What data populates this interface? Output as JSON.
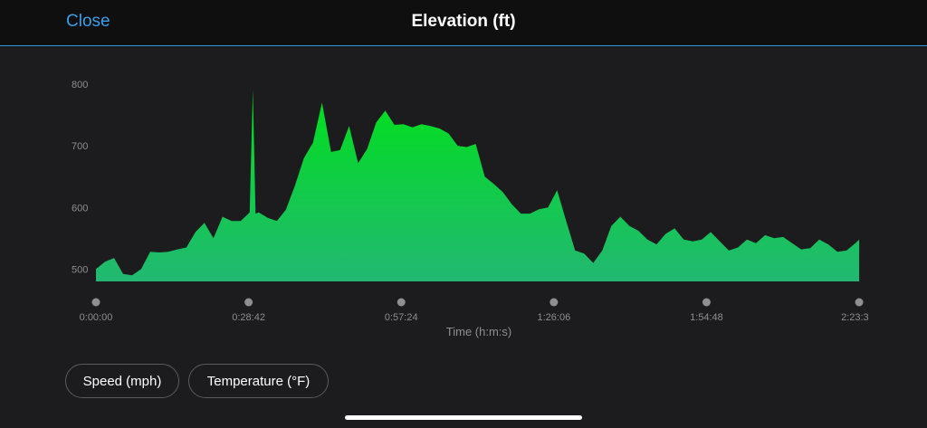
{
  "header": {
    "close_label": "Close",
    "title": "Elevation (ft)"
  },
  "buttons": {
    "speed_label": "Speed (mph)",
    "temperature_label": "Temperature (°F)"
  },
  "colors": {
    "accent": "#3a9fe6",
    "fill_top": "#00e01a",
    "fill_bottom": "#22b873",
    "background": "#1c1c1e"
  },
  "chart_data": {
    "type": "area",
    "title": "Elevation (ft)",
    "xlabel": "Time (h:m:s)",
    "ylabel": "",
    "x_unit": "seconds",
    "xlim": [
      0,
      8640
    ],
    "ylim": [
      480,
      800
    ],
    "yticks": [
      500,
      600,
      700,
      800
    ],
    "xticks": [
      {
        "value": 0,
        "label": "0:00:00"
      },
      {
        "value": 1722,
        "label": "0:28:42"
      },
      {
        "value": 3444,
        "label": "0:57:24"
      },
      {
        "value": 5166,
        "label": "1:26:06"
      },
      {
        "value": 6888,
        "label": "1:54:48"
      },
      {
        "value": 8610,
        "label": "2:23:3"
      }
    ],
    "grid": false,
    "series": [
      {
        "x": [
          0,
          102,
          204,
          306,
          408,
          510,
          612,
          714,
          816,
          918,
          1020,
          1122,
          1224,
          1326,
          1428,
          1530,
          1632,
          1734,
          1770,
          1800,
          1836,
          1938,
          2040,
          2142,
          2244,
          2346,
          2448,
          2550,
          2652,
          2754,
          2856,
          2958,
          3060,
          3162,
          3264,
          3366,
          3468,
          3570,
          3672,
          3774,
          3876,
          3978,
          4080,
          4182,
          4284,
          4386,
          4488,
          4590,
          4692,
          4794,
          4896,
          4998,
          5100,
          5202,
          5304,
          5406,
          5508,
          5610,
          5712,
          5814,
          5916,
          6018,
          6120,
          6222,
          6324,
          6426,
          6528,
          6630,
          6732,
          6834,
          6936,
          7038,
          7140,
          7242,
          7344,
          7446,
          7548,
          7650,
          7752,
          7854,
          7956,
          8058,
          8160,
          8262,
          8364,
          8466,
          8568,
          8610
        ],
        "y": [
          500,
          512,
          518,
          492,
          490,
          500,
          528,
          527,
          528,
          532,
          535,
          560,
          575,
          550,
          585,
          578,
          578,
          592,
          792,
          590,
          592,
          583,
          578,
          596,
          635,
          680,
          705,
          770,
          690,
          693,
          732,
          672,
          695,
          738,
          757,
          734,
          735,
          730,
          735,
          732,
          728,
          720,
          700,
          698,
          703,
          650,
          638,
          625,
          605,
          590,
          590,
          597,
          600,
          628,
          578,
          530,
          525,
          510,
          530,
          570,
          585,
          570,
          562,
          548,
          540,
          557,
          566,
          548,
          545,
          548,
          560,
          545,
          530,
          535,
          548,
          542,
          555,
          550,
          552,
          542,
          532,
          534,
          548,
          540,
          528,
          530,
          542,
          548
        ]
      }
    ]
  }
}
